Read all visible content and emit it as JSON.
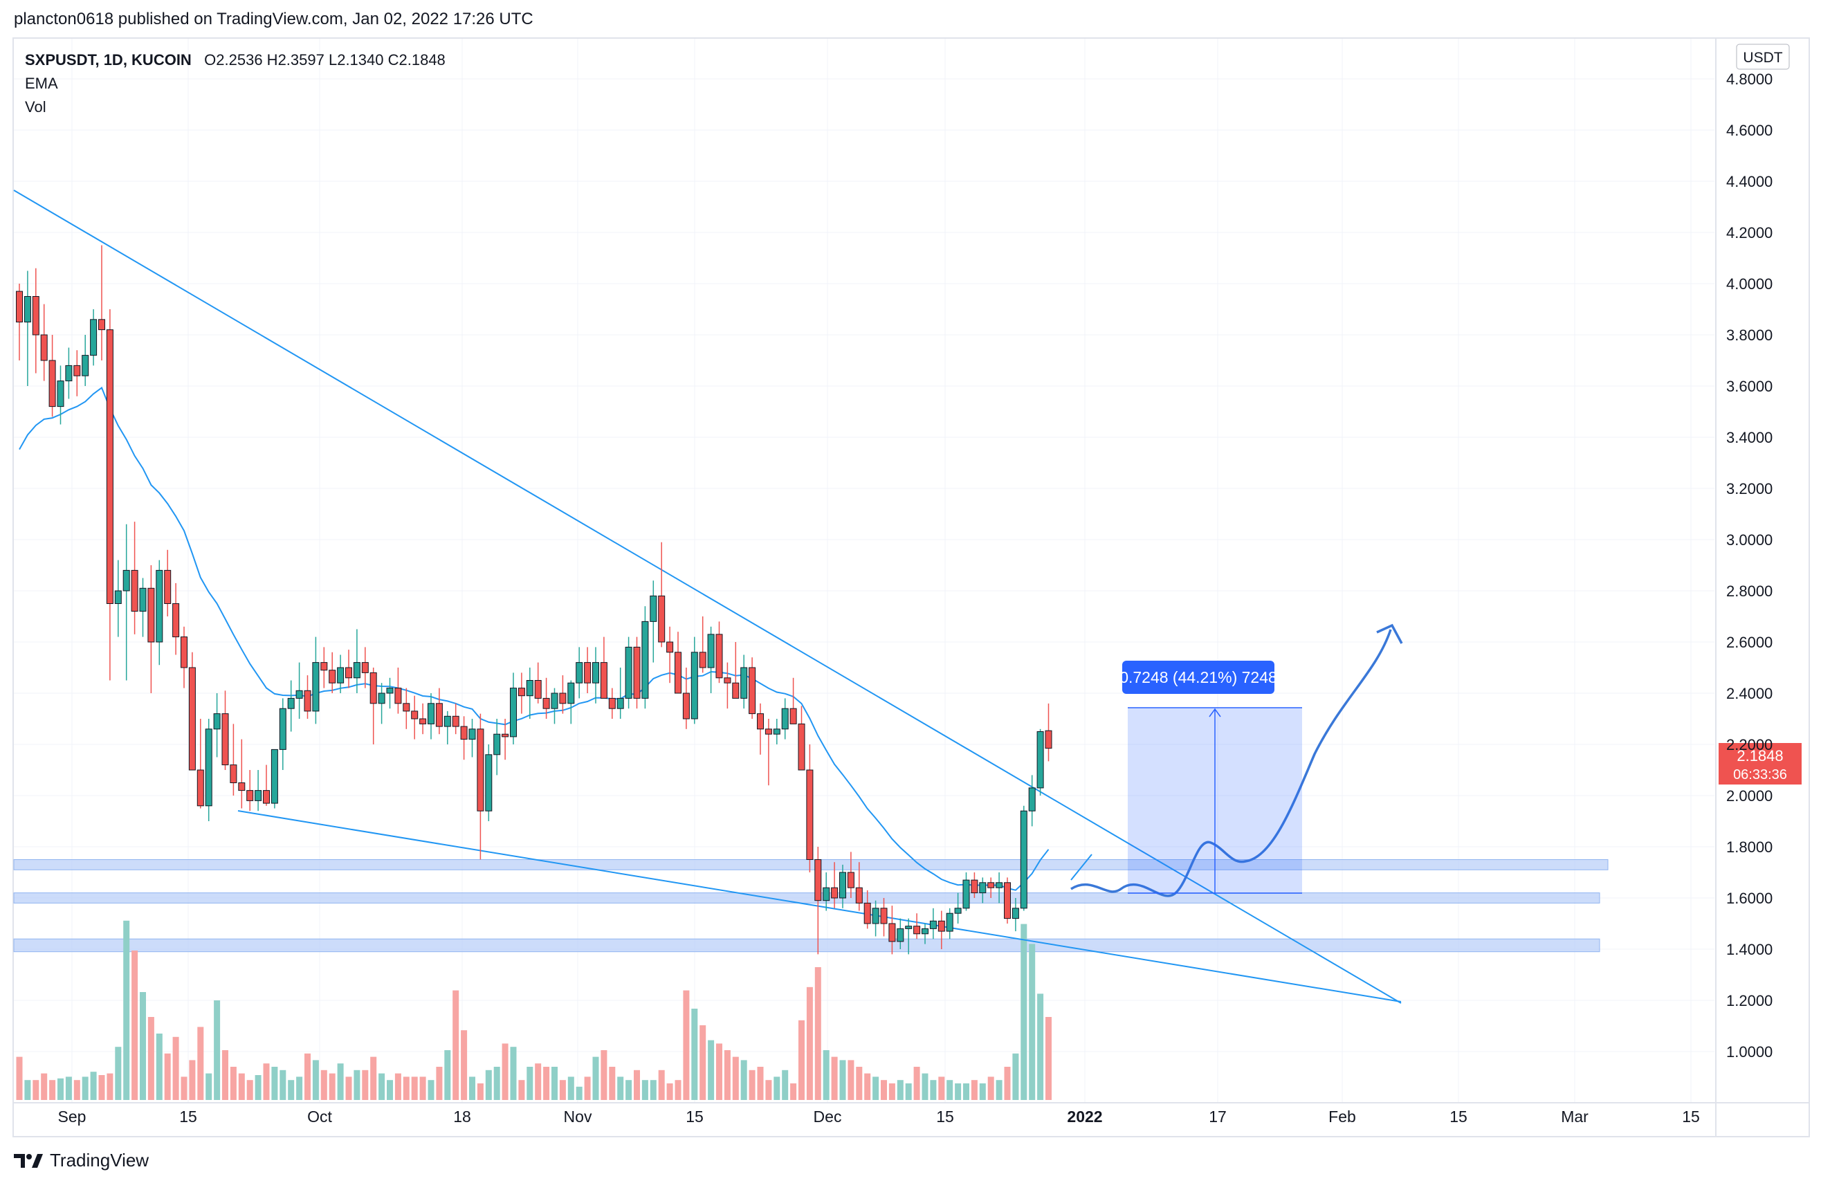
{
  "header": {
    "published": "plancton0618 published on TradingView.com, Jan 02, 2022 17:26 UTC"
  },
  "legend": {
    "symbol": "SXPUSDT, 1D, KUCOIN",
    "ohlc": "O2.2536  H2.3597  L2.1340  C2.1848",
    "ema_label": "EMA",
    "vol_label": "Vol"
  },
  "footer": {
    "brand": "TradingView"
  },
  "axis": {
    "currency": "USDT",
    "current_price": "2.1848",
    "countdown": "06:33:36"
  },
  "measure": {
    "label": "0.7248 (44.21%) 7248"
  },
  "colors": {
    "up": "#26a69a",
    "down": "#ef5350",
    "line": "#2962ff",
    "trend": "#2196f3",
    "ema": "#2196f3",
    "vol_up": "#8fcfc7",
    "vol_down": "#f7a5a3",
    "zone": "#bbd0f8"
  },
  "chart_data": {
    "type": "candlestick",
    "title": "SXPUSDT, 1D, KUCOIN",
    "ylim": [
      0.9,
      4.9
    ],
    "y_ticks": [
      "4.8000",
      "4.6000",
      "4.4000",
      "4.2000",
      "4.0000",
      "3.8000",
      "3.6000",
      "3.4000",
      "3.2000",
      "3.0000",
      "2.8000",
      "2.6000",
      "2.4000",
      "2.2000",
      "2.0000",
      "1.8000",
      "1.6000",
      "1.4000",
      "1.2000",
      "1.0000"
    ],
    "x_ticks": [
      "Sep",
      "15",
      "Oct",
      "18",
      "Nov",
      "15",
      "Dec",
      "15",
      "2022",
      "17",
      "Feb",
      "15",
      "Mar",
      "15"
    ],
    "candles_ohlc": [
      [
        3.97,
        4.0,
        3.7,
        3.85
      ],
      [
        3.85,
        4.05,
        3.6,
        3.95
      ],
      [
        3.95,
        4.06,
        3.65,
        3.8
      ],
      [
        3.8,
        3.92,
        3.62,
        3.7
      ],
      [
        3.7,
        3.8,
        3.48,
        3.52
      ],
      [
        3.52,
        3.68,
        3.45,
        3.62
      ],
      [
        3.62,
        3.75,
        3.55,
        3.68
      ],
      [
        3.68,
        3.74,
        3.56,
        3.64
      ],
      [
        3.64,
        3.8,
        3.6,
        3.72
      ],
      [
        3.72,
        3.9,
        3.68,
        3.86
      ],
      [
        3.86,
        4.15,
        3.7,
        3.82
      ],
      [
        3.82,
        3.9,
        2.45,
        2.75
      ],
      [
        2.75,
        2.92,
        2.62,
        2.8
      ],
      [
        2.8,
        3.06,
        2.45,
        2.88
      ],
      [
        2.88,
        3.07,
        2.63,
        2.72
      ],
      [
        2.72,
        2.85,
        2.62,
        2.81
      ],
      [
        2.81,
        2.9,
        2.4,
        2.6
      ],
      [
        2.6,
        2.92,
        2.51,
        2.88
      ],
      [
        2.88,
        2.96,
        2.7,
        2.75
      ],
      [
        2.75,
        2.83,
        2.55,
        2.62
      ],
      [
        2.62,
        2.66,
        2.42,
        2.5
      ],
      [
        2.5,
        2.56,
        2.17,
        2.1
      ],
      [
        2.1,
        2.3,
        1.95,
        1.96
      ],
      [
        1.96,
        2.3,
        1.9,
        2.26
      ],
      [
        2.26,
        2.4,
        2.15,
        2.32
      ],
      [
        2.32,
        2.41,
        2.1,
        2.12
      ],
      [
        2.12,
        2.28,
        2.0,
        2.05
      ],
      [
        2.05,
        2.22,
        1.95,
        2.02
      ],
      [
        2.02,
        2.1,
        1.94,
        1.98
      ],
      [
        1.98,
        2.1,
        1.94,
        2.02
      ],
      [
        2.02,
        2.12,
        1.96,
        1.97
      ],
      [
        1.97,
        2.18,
        1.95,
        2.18
      ],
      [
        2.18,
        2.38,
        2.1,
        2.34
      ],
      [
        2.34,
        2.45,
        2.25,
        2.38
      ],
      [
        2.38,
        2.52,
        2.3,
        2.41
      ],
      [
        2.41,
        2.47,
        2.3,
        2.33
      ],
      [
        2.33,
        2.62,
        2.28,
        2.52
      ],
      [
        2.52,
        2.58,
        2.42,
        2.49
      ],
      [
        2.49,
        2.56,
        2.4,
        2.44
      ],
      [
        2.44,
        2.55,
        2.4,
        2.5
      ],
      [
        2.5,
        2.57,
        2.42,
        2.46
      ],
      [
        2.46,
        2.65,
        2.4,
        2.52
      ],
      [
        2.52,
        2.58,
        2.42,
        2.48
      ],
      [
        2.48,
        2.5,
        2.2,
        2.36
      ],
      [
        2.36,
        2.44,
        2.28,
        2.4
      ],
      [
        2.4,
        2.46,
        2.34,
        2.42
      ],
      [
        2.42,
        2.5,
        2.32,
        2.36
      ],
      [
        2.36,
        2.42,
        2.26,
        2.33
      ],
      [
        2.33,
        2.39,
        2.22,
        2.3
      ],
      [
        2.3,
        2.36,
        2.24,
        2.28
      ],
      [
        2.28,
        2.4,
        2.22,
        2.36
      ],
      [
        2.36,
        2.42,
        2.24,
        2.27
      ],
      [
        2.27,
        2.33,
        2.2,
        2.31
      ],
      [
        2.31,
        2.36,
        2.24,
        2.27
      ],
      [
        2.27,
        2.31,
        2.14,
        2.22
      ],
      [
        2.22,
        2.3,
        2.15,
        2.26
      ],
      [
        2.26,
        2.32,
        1.75,
        1.94
      ],
      [
        1.94,
        2.2,
        1.9,
        2.16
      ],
      [
        2.16,
        2.3,
        2.08,
        2.24
      ],
      [
        2.24,
        2.3,
        2.14,
        2.23
      ],
      [
        2.23,
        2.48,
        2.2,
        2.42
      ],
      [
        2.42,
        2.48,
        2.32,
        2.39
      ],
      [
        2.39,
        2.5,
        2.3,
        2.45
      ],
      [
        2.45,
        2.52,
        2.36,
        2.38
      ],
      [
        2.38,
        2.46,
        2.3,
        2.34
      ],
      [
        2.34,
        2.42,
        2.28,
        2.4
      ],
      [
        2.4,
        2.47,
        2.32,
        2.36
      ],
      [
        2.36,
        2.45,
        2.28,
        2.44
      ],
      [
        2.44,
        2.58,
        2.38,
        2.52
      ],
      [
        2.52,
        2.58,
        2.4,
        2.44
      ],
      [
        2.44,
        2.58,
        2.36,
        2.52
      ],
      [
        2.52,
        2.62,
        2.4,
        2.38
      ],
      [
        2.38,
        2.42,
        2.3,
        2.34
      ],
      [
        2.34,
        2.5,
        2.3,
        2.38
      ],
      [
        2.38,
        2.62,
        2.34,
        2.58
      ],
      [
        2.58,
        2.62,
        2.34,
        2.38
      ],
      [
        2.38,
        2.74,
        2.34,
        2.68
      ],
      [
        2.68,
        2.84,
        2.52,
        2.78
      ],
      [
        2.78,
        2.99,
        2.58,
        2.6
      ],
      [
        2.6,
        2.66,
        2.44,
        2.56
      ],
      [
        2.56,
        2.64,
        2.4,
        2.4
      ],
      [
        2.4,
        2.5,
        2.26,
        2.3
      ],
      [
        2.3,
        2.62,
        2.28,
        2.56
      ],
      [
        2.56,
        2.7,
        2.48,
        2.5
      ],
      [
        2.5,
        2.66,
        2.4,
        2.63
      ],
      [
        2.63,
        2.68,
        2.44,
        2.46
      ],
      [
        2.46,
        2.52,
        2.34,
        2.44
      ],
      [
        2.44,
        2.6,
        2.38,
        2.38
      ],
      [
        2.38,
        2.55,
        2.34,
        2.5
      ],
      [
        2.5,
        2.54,
        2.3,
        2.32
      ],
      [
        2.32,
        2.36,
        2.16,
        2.26
      ],
      [
        2.26,
        2.3,
        2.04,
        2.24
      ],
      [
        2.24,
        2.3,
        2.2,
        2.26
      ],
      [
        2.26,
        2.38,
        2.22,
        2.34
      ],
      [
        2.34,
        2.46,
        2.28,
        2.28
      ],
      [
        2.28,
        2.35,
        2.2,
        2.1
      ],
      [
        2.1,
        2.2,
        1.7,
        1.75
      ],
      [
        1.75,
        1.8,
        1.38,
        1.59
      ],
      [
        1.59,
        1.7,
        1.55,
        1.64
      ],
      [
        1.64,
        1.74,
        1.56,
        1.6
      ],
      [
        1.6,
        1.73,
        1.56,
        1.7
      ],
      [
        1.7,
        1.78,
        1.6,
        1.64
      ],
      [
        1.64,
        1.74,
        1.55,
        1.58
      ],
      [
        1.58,
        1.63,
        1.48,
        1.5
      ],
      [
        1.5,
        1.59,
        1.45,
        1.56
      ],
      [
        1.56,
        1.6,
        1.45,
        1.5
      ],
      [
        1.5,
        1.57,
        1.38,
        1.43
      ],
      [
        1.43,
        1.52,
        1.4,
        1.48
      ],
      [
        1.48,
        1.52,
        1.38,
        1.49
      ],
      [
        1.49,
        1.54,
        1.44,
        1.46
      ],
      [
        1.46,
        1.5,
        1.42,
        1.48
      ],
      [
        1.48,
        1.56,
        1.44,
        1.51
      ],
      [
        1.51,
        1.55,
        1.4,
        1.47
      ],
      [
        1.47,
        1.56,
        1.44,
        1.54
      ],
      [
        1.54,
        1.62,
        1.5,
        1.56
      ],
      [
        1.56,
        1.7,
        1.55,
        1.67
      ],
      [
        1.67,
        1.7,
        1.6,
        1.62
      ],
      [
        1.62,
        1.68,
        1.58,
        1.66
      ],
      [
        1.66,
        1.68,
        1.6,
        1.64
      ],
      [
        1.64,
        1.7,
        1.58,
        1.66
      ],
      [
        1.66,
        1.68,
        1.5,
        1.52
      ],
      [
        1.52,
        1.6,
        1.47,
        1.56
      ],
      [
        1.56,
        1.96,
        1.55,
        1.94
      ],
      [
        1.94,
        2.08,
        1.88,
        2.03
      ],
      [
        2.03,
        2.26,
        2.0,
        2.25
      ],
      [
        2.2536,
        2.3597,
        2.134,
        2.1848
      ]
    ],
    "volume": [
      26,
      12,
      12,
      16,
      12,
      13,
      14,
      12,
      14,
      17,
      15,
      16,
      32,
      108,
      90,
      65,
      50,
      40,
      28,
      38,
      14,
      24,
      44,
      16,
      60,
      30,
      20,
      16,
      12,
      15,
      22,
      20,
      18,
      12,
      14,
      28,
      24,
      18,
      16,
      22,
      14,
      18,
      18,
      26,
      16,
      12,
      16,
      14,
      14,
      14,
      12,
      20,
      30,
      66,
      42,
      14,
      10,
      18,
      20,
      34,
      32,
      12,
      20,
      22,
      20,
      20,
      12,
      14,
      8,
      14,
      26,
      30,
      20,
      14,
      12,
      18,
      12,
      12,
      18,
      10,
      12,
      66,
      55,
      45,
      36,
      34,
      30,
      26,
      24,
      18,
      20,
      12,
      14,
      18,
      10,
      48,
      68,
      80,
      30,
      26,
      24,
      24,
      20,
      16,
      14,
      12,
      10,
      12,
      10,
      20,
      16,
      12,
      14,
      12,
      10,
      10,
      12,
      10,
      14,
      12,
      20,
      28,
      106,
      94,
      64,
      50
    ]
  }
}
